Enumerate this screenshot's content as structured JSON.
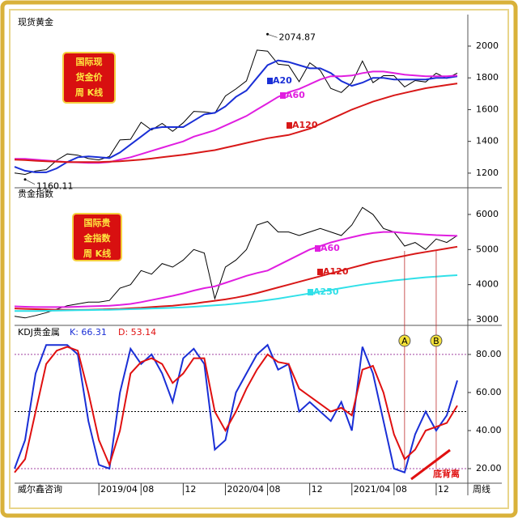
{
  "chart_data": [
    {
      "type": "line",
      "badge": [
        "国际现",
        "货金价",
        "周  K线"
      ],
      "x": [
        "2018/08",
        "2018/09",
        "2018/10",
        "2018/11",
        "2018/12",
        "2019/01",
        "2019/02",
        "2019/03",
        "2019/04",
        "2019/05",
        "2019/06",
        "2019/07",
        "2019/08",
        "2019/09",
        "2019/10",
        "2019/11",
        "2019/12",
        "2020/01",
        "2020/02",
        "2020/03",
        "2020/04",
        "2020/05",
        "2020/06",
        "2020/07",
        "2020/08",
        "2020/09",
        "2020/10",
        "2020/11",
        "2020/12",
        "2021/01",
        "2021/02",
        "2021/03",
        "2021/04",
        "2021/05",
        "2021/06",
        "2021/07",
        "2021/08",
        "2021/09",
        "2021/10",
        "2021/11",
        "2021/12",
        "2022/01",
        "2022/02"
      ],
      "xlim": [
        "2018/08",
        "2022/03"
      ],
      "ylim": [
        1118,
        2112
      ],
      "yticks": [
        1200,
        1400,
        1600,
        1800,
        2000
      ],
      "series": [
        {
          "name": "现货黄金",
          "color": "#000000",
          "values": [
            1201,
            1192,
            1214,
            1222,
            1281,
            1321,
            1313,
            1292,
            1283,
            1305,
            1409,
            1413,
            1520,
            1472,
            1513,
            1463,
            1517,
            1589,
            1585,
            1577,
            1686,
            1730,
            1781,
            1975,
            1968,
            1886,
            1879,
            1776,
            1895,
            1847,
            1734,
            1708,
            1769,
            1906,
            1770,
            1814,
            1814,
            1743,
            1783,
            1774,
            1829,
            1797,
            1830
          ]
        },
        {
          "name": "A20",
          "color": "#1a2fd6",
          "values": [
            1240,
            1215,
            1205,
            1205,
            1230,
            1270,
            1300,
            1305,
            1300,
            1295,
            1330,
            1380,
            1430,
            1480,
            1490,
            1490,
            1490,
            1530,
            1570,
            1580,
            1620,
            1680,
            1720,
            1800,
            1880,
            1910,
            1900,
            1880,
            1860,
            1860,
            1830,
            1780,
            1750,
            1770,
            1800,
            1800,
            1790,
            1790,
            1790,
            1790,
            1800,
            1800,
            1810
          ]
        },
        {
          "name": "A60",
          "color": "#e01ee0",
          "values": [
            1290,
            1290,
            1285,
            1280,
            1275,
            1270,
            1268,
            1265,
            1265,
            1270,
            1285,
            1300,
            1320,
            1340,
            1360,
            1380,
            1400,
            1430,
            1450,
            1470,
            1500,
            1530,
            1560,
            1600,
            1640,
            1680,
            1710,
            1730,
            1760,
            1790,
            1810,
            1810,
            1815,
            1830,
            1840,
            1840,
            1830,
            1820,
            1815,
            1810,
            1810,
            1810,
            1815
          ]
        },
        {
          "name": "A120",
          "color": "#d81818",
          "values": [
            1285,
            1282,
            1278,
            1275,
            1272,
            1270,
            1270,
            1270,
            1270,
            1272,
            1275,
            1280,
            1285,
            1292,
            1300,
            1308,
            1316,
            1325,
            1335,
            1345,
            1360,
            1375,
            1390,
            1405,
            1420,
            1430,
            1440,
            1460,
            1480,
            1510,
            1540,
            1570,
            1600,
            1625,
            1650,
            1670,
            1690,
            1705,
            1720,
            1735,
            1745,
            1755,
            1765
          ]
        }
      ],
      "annotations": [
        {
          "x": "2020/08",
          "value": 2074.87
        },
        {
          "x": "2018/09",
          "value": 1160.11
        }
      ]
    },
    {
      "type": "line",
      "badge": [
        "国际贵",
        "金指数",
        "周  K线"
      ],
      "x": [
        "2018/08",
        "2018/09",
        "2018/10",
        "2018/11",
        "2018/12",
        "2019/01",
        "2019/02",
        "2019/03",
        "2019/04",
        "2019/05",
        "2019/06",
        "2019/07",
        "2019/08",
        "2019/09",
        "2019/10",
        "2019/11",
        "2019/12",
        "2020/01",
        "2020/02",
        "2020/03",
        "2020/04",
        "2020/05",
        "2020/06",
        "2020/07",
        "2020/08",
        "2020/09",
        "2020/10",
        "2020/11",
        "2020/12",
        "2021/01",
        "2021/02",
        "2021/03",
        "2021/04",
        "2021/05",
        "2021/06",
        "2021/07",
        "2021/08",
        "2021/09",
        "2021/10",
        "2021/11",
        "2021/12",
        "2022/01",
        "2022/02"
      ],
      "xlim": [
        "2018/08",
        "2022/03"
      ],
      "ylim": [
        2885,
        6460
      ],
      "yticks": [
        3000,
        4000,
        5000,
        6000
      ],
      "series": [
        {
          "name": "贵金指数",
          "color": "#000000",
          "values": [
            3100,
            3050,
            3120,
            3200,
            3300,
            3400,
            3450,
            3500,
            3500,
            3550,
            3900,
            4000,
            4400,
            4300,
            4600,
            4500,
            4700,
            5000,
            4900,
            3600,
            4500,
            4700,
            5000,
            5700,
            5800,
            5500,
            5500,
            5400,
            5500,
            5600,
            5500,
            5400,
            5700,
            6200,
            6000,
            5600,
            5500,
            5100,
            5200,
            5000,
            5300,
            5200,
            5400
          ]
        },
        {
          "name": "A60",
          "color": "#e01ee0",
          "values": [
            3380,
            3370,
            3360,
            3360,
            3360,
            3360,
            3370,
            3380,
            3390,
            3400,
            3420,
            3450,
            3500,
            3560,
            3620,
            3680,
            3750,
            3830,
            3900,
            3950,
            4050,
            4150,
            4250,
            4330,
            4400,
            4550,
            4700,
            4850,
            5000,
            5100,
            5200,
            5280,
            5350,
            5420,
            5470,
            5500,
            5500,
            5470,
            5450,
            5430,
            5410,
            5400,
            5390
          ]
        },
        {
          "name": "A120",
          "color": "#d81818",
          "values": [
            3320,
            3310,
            3300,
            3290,
            3285,
            3280,
            3280,
            3285,
            3290,
            3300,
            3310,
            3325,
            3340,
            3360,
            3380,
            3400,
            3430,
            3460,
            3500,
            3540,
            3580,
            3630,
            3690,
            3760,
            3840,
            3920,
            4000,
            4080,
            4160,
            4240,
            4320,
            4400,
            4480,
            4560,
            4640,
            4700,
            4760,
            4820,
            4880,
            4930,
            4980,
            5030,
            5080
          ]
        },
        {
          "name": "A250",
          "color": "#30e0e8",
          "values": [
            3250,
            3250,
            3250,
            3255,
            3260,
            3265,
            3270,
            3275,
            3280,
            3285,
            3290,
            3300,
            3310,
            3320,
            3330,
            3340,
            3350,
            3370,
            3390,
            3410,
            3430,
            3460,
            3490,
            3520,
            3560,
            3600,
            3650,
            3700,
            3750,
            3800,
            3850,
            3900,
            3950,
            4000,
            4040,
            4080,
            4120,
            4150,
            4180,
            4210,
            4230,
            4250,
            4270
          ]
        }
      ]
    },
    {
      "type": "line",
      "title": "KDJ贵金属",
      "x": [
        "2018/08",
        "2018/09",
        "2018/10",
        "2018/11",
        "2018/12",
        "2019/01",
        "2019/02",
        "2019/03",
        "2019/04",
        "2019/05",
        "2019/06",
        "2019/07",
        "2019/08",
        "2019/09",
        "2019/10",
        "2019/11",
        "2019/12",
        "2020/01",
        "2020/02",
        "2020/03",
        "2020/04",
        "2020/05",
        "2020/06",
        "2020/07",
        "2020/08",
        "2020/09",
        "2020/10",
        "2020/11",
        "2020/12",
        "2021/01",
        "2021/02",
        "2021/03",
        "2021/04",
        "2021/05",
        "2021/06",
        "2021/07",
        "2021/08",
        "2021/09",
        "2021/10",
        "2021/11",
        "2021/12",
        "2022/01",
        "2022/02"
      ],
      "xlim": [
        "2018/08",
        "2022/03"
      ],
      "xticks": [
        {
          "value": "2019/04",
          "label": "2019/04"
        },
        {
          "value": "2019/08",
          "label": "08"
        },
        {
          "value": "2019/12",
          "label": "12"
        },
        {
          "value": "2020/04",
          "label": "2020/04"
        },
        {
          "value": "2020/08",
          "label": "08"
        },
        {
          "value": "2020/12",
          "label": "12"
        },
        {
          "value": "2021/04",
          "label": "2021/04"
        },
        {
          "value": "2021/08",
          "label": "08"
        },
        {
          "value": "2021/12",
          "label": "12"
        }
      ],
      "ylim": [
        13.2,
        94
      ],
      "yticks": [
        {
          "value": 20,
          "label": "20.00"
        },
        {
          "value": 40,
          "label": "40.00"
        },
        {
          "value": 60,
          "label": "60.00"
        },
        {
          "value": 80,
          "label": "80.00"
        }
      ],
      "hlines": [
        {
          "value": 80,
          "color": "#a040a0"
        },
        {
          "value": 50,
          "color": "#000000"
        },
        {
          "value": 20,
          "color": "#a040a0"
        }
      ],
      "series": [
        {
          "name": "K: 66.31",
          "color": "#1a2fd6",
          "values": [
            20,
            35,
            70,
            85,
            85,
            85,
            80,
            45,
            22,
            20,
            60,
            83,
            75,
            80,
            70,
            55,
            78,
            83,
            75,
            30,
            35,
            60,
            70,
            80,
            85,
            72,
            75,
            50,
            55,
            50,
            45,
            55,
            40,
            84,
            70,
            45,
            20,
            18,
            38,
            50,
            40,
            48,
            66.31
          ]
        },
        {
          "name": "D: 53.14",
          "color": "#e01010",
          "values": [
            18,
            25,
            50,
            75,
            82,
            84,
            82,
            60,
            35,
            22,
            40,
            70,
            76,
            78,
            75,
            65,
            70,
            78,
            78,
            50,
            40,
            50,
            62,
            72,
            80,
            76,
            75,
            62,
            58,
            54,
            50,
            52,
            48,
            72,
            74,
            60,
            38,
            25,
            30,
            40,
            42,
            44,
            53.14
          ]
        }
      ],
      "markers": [
        {
          "label": "A",
          "x": "2021/09"
        },
        {
          "label": "B",
          "x": "2021/12"
        }
      ],
      "note": "底背离",
      "source": "威尔鑫咨询",
      "period": "周线"
    }
  ]
}
